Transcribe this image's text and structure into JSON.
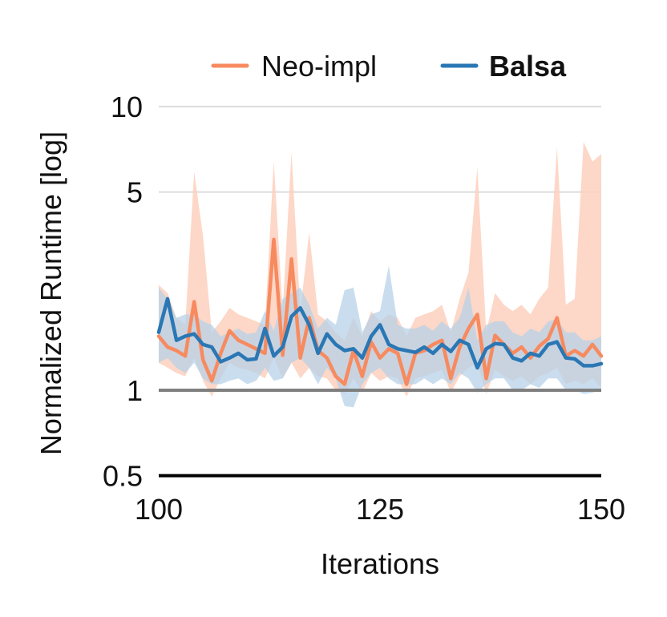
{
  "chart_data": {
    "type": "line",
    "xlabel": "Iterations",
    "ylabel": "Normalized Runtime [log]",
    "xlim": [
      100,
      150
    ],
    "ylim": [
      0.5,
      12
    ],
    "yscale": "log",
    "x_ticks": [
      100,
      125,
      150
    ],
    "y_ticks": [
      0.5,
      1,
      5,
      10
    ],
    "x_tick_labels": [
      "100",
      "125",
      "150"
    ],
    "y_tick_labels": [
      "0.5",
      "1",
      "5",
      "10"
    ],
    "grid": "horizontal",
    "reference_line": 1,
    "legend_position": "top",
    "series": [
      {
        "name": "Neo-impl",
        "color": "#f78a5f",
        "band_color": "#fdd0bd",
        "x": [
          100,
          101,
          102,
          103,
          104,
          105,
          106,
          107,
          108,
          109,
          110,
          111,
          112,
          113,
          114,
          115,
          116,
          117,
          118,
          119,
          120,
          121,
          122,
          123,
          124,
          125,
          126,
          127,
          128,
          129,
          130,
          131,
          132,
          133,
          134,
          135,
          136,
          137,
          138,
          139,
          140,
          141,
          142,
          143,
          144,
          145,
          146,
          147,
          148,
          149,
          150
        ],
        "values": [
          1.55,
          1.42,
          1.38,
          1.32,
          2.05,
          1.28,
          1.08,
          1.35,
          1.62,
          1.5,
          1.45,
          1.4,
          1.35,
          3.4,
          1.33,
          2.9,
          1.3,
          1.8,
          1.38,
          1.3,
          1.12,
          1.05,
          1.38,
          1.12,
          1.48,
          1.3,
          1.4,
          1.35,
          1.05,
          1.35,
          1.38,
          1.45,
          1.5,
          1.1,
          1.42,
          1.65,
          1.85,
          1.1,
          1.56,
          1.45,
          1.35,
          1.42,
          1.3,
          1.43,
          1.52,
          1.8,
          1.32,
          1.38,
          1.32,
          1.45,
          1.32
        ],
        "lower": [
          1.25,
          1.2,
          1.15,
          1.12,
          1.3,
          1.08,
          0.95,
          1.1,
          1.25,
          1.2,
          1.18,
          1.15,
          1.1,
          1.3,
          1.1,
          1.25,
          1.1,
          1.2,
          1.12,
          1.1,
          1.0,
          0.97,
          1.1,
          0.98,
          1.15,
          1.08,
          1.12,
          1.1,
          0.95,
          1.1,
          1.12,
          1.15,
          1.18,
          0.98,
          1.12,
          1.2,
          1.25,
          0.97,
          1.18,
          1.12,
          1.08,
          1.12,
          1.05,
          1.12,
          1.15,
          1.2,
          1.05,
          1.08,
          1.05,
          1.1,
          1.02
        ],
        "upper": [
          2.35,
          2.2,
          1.8,
          1.7,
          5.9,
          3.5,
          1.6,
          1.75,
          1.95,
          1.85,
          1.8,
          1.75,
          1.7,
          6.4,
          1.9,
          6.9,
          1.9,
          3.6,
          1.85,
          1.75,
          1.6,
          1.5,
          1.8,
          1.55,
          1.9,
          1.75,
          1.85,
          1.8,
          1.55,
          1.8,
          1.85,
          1.9,
          2.0,
          1.6,
          2.1,
          2.6,
          6.1,
          1.6,
          2.2,
          2.0,
          1.9,
          2.0,
          1.85,
          2.1,
          2.3,
          7.2,
          2.0,
          2.1,
          7.5,
          6.4,
          6.8
        ]
      },
      {
        "name": "Balsa",
        "color": "#2a77b4",
        "band_color": "#b7d1e8",
        "x": [
          100,
          101,
          102,
          103,
          104,
          105,
          106,
          107,
          108,
          109,
          110,
          111,
          112,
          113,
          114,
          115,
          116,
          117,
          118,
          119,
          120,
          121,
          122,
          123,
          124,
          125,
          126,
          127,
          128,
          129,
          130,
          131,
          132,
          133,
          134,
          135,
          136,
          137,
          138,
          139,
          140,
          141,
          142,
          143,
          144,
          145,
          146,
          147,
          148,
          149,
          150
        ],
        "values": [
          1.6,
          2.1,
          1.5,
          1.55,
          1.58,
          1.45,
          1.42,
          1.26,
          1.3,
          1.35,
          1.28,
          1.29,
          1.65,
          1.32,
          1.42,
          1.82,
          1.95,
          1.7,
          1.35,
          1.58,
          1.45,
          1.38,
          1.4,
          1.3,
          1.55,
          1.7,
          1.45,
          1.4,
          1.38,
          1.36,
          1.42,
          1.35,
          1.45,
          1.37,
          1.5,
          1.45,
          1.2,
          1.4,
          1.46,
          1.45,
          1.3,
          1.27,
          1.35,
          1.32,
          1.45,
          1.48,
          1.3,
          1.29,
          1.22,
          1.22,
          1.24
        ],
        "lower": [
          1.25,
          1.3,
          1.2,
          1.15,
          1.25,
          1.1,
          1.05,
          1.05,
          1.08,
          1.1,
          1.05,
          1.08,
          1.2,
          1.08,
          1.1,
          1.25,
          1.3,
          1.2,
          1.05,
          1.2,
          1.1,
          0.88,
          0.87,
          1.05,
          1.15,
          1.2,
          1.1,
          1.05,
          1.05,
          1.05,
          1.1,
          1.05,
          1.1,
          1.05,
          1.15,
          1.1,
          0.98,
          1.05,
          1.1,
          1.1,
          1.0,
          1.0,
          1.05,
          1.02,
          1.1,
          1.1,
          1.0,
          1.0,
          0.97,
          0.98,
          1.0
        ],
        "upper": [
          2.3,
          2.1,
          1.8,
          1.85,
          1.85,
          1.75,
          1.7,
          1.55,
          1.6,
          1.65,
          1.58,
          1.6,
          1.9,
          1.62,
          2.1,
          2.2,
          2.3,
          2.0,
          1.65,
          1.8,
          1.7,
          2.25,
          2.3,
          1.6,
          1.85,
          1.9,
          2.75,
          1.7,
          1.65,
          1.65,
          1.7,
          1.62,
          1.75,
          1.65,
          1.8,
          2.3,
          1.5,
          1.7,
          1.75,
          1.75,
          1.6,
          1.55,
          1.65,
          1.6,
          1.75,
          1.78,
          1.6,
          1.6,
          1.5,
          1.5,
          1.55
        ]
      }
    ]
  }
}
